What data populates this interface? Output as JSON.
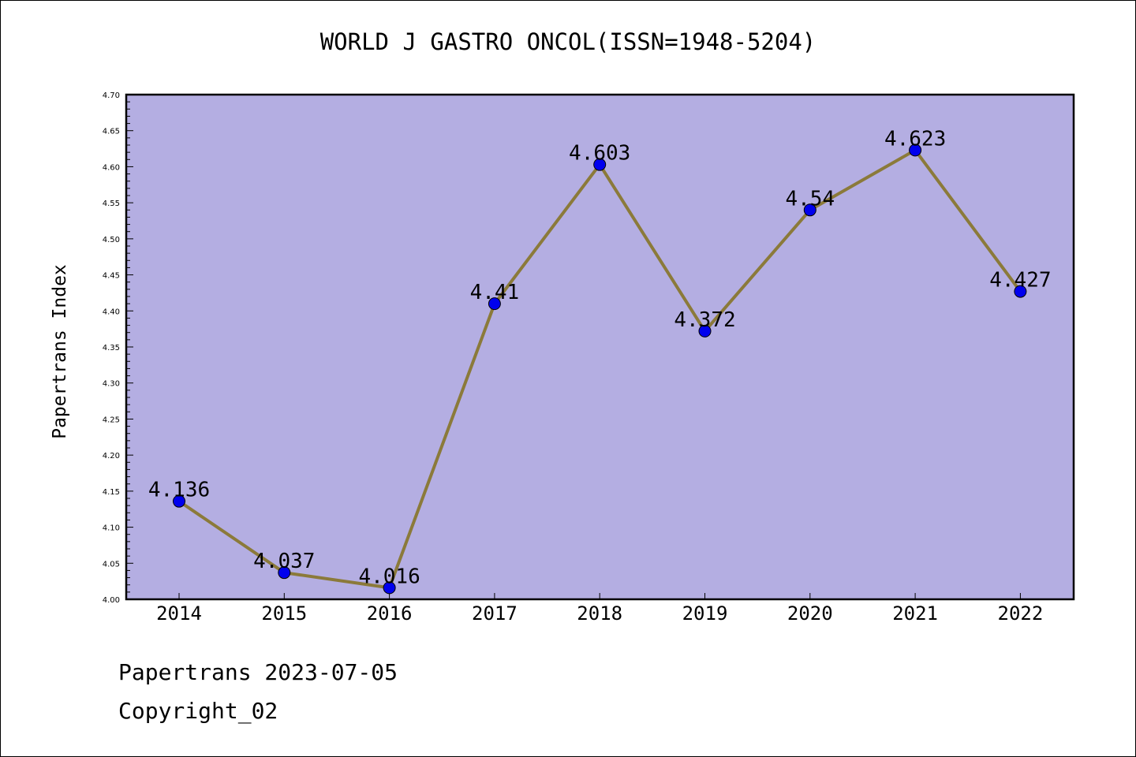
{
  "chart_data": {
    "type": "line",
    "title": "WORLD J GASTRO ONCOL(ISSN=1948-5204)",
    "ylabel": "Papertrans Index",
    "xlabel": "",
    "categories": [
      "2014",
      "2015",
      "2016",
      "2017",
      "2018",
      "2019",
      "2020",
      "2021",
      "2022"
    ],
    "values": [
      4.136,
      4.037,
      4.016,
      4.41,
      4.603,
      4.372,
      4.54,
      4.623,
      4.427
    ],
    "data_labels": [
      "4.136",
      "4.037",
      "4.016",
      "4.41",
      "4.603",
      "4.372",
      "4.54",
      "4.623",
      "4.427"
    ],
    "ylim": [
      4.0,
      4.7
    ],
    "yticks": [
      "4.00",
      "4.05",
      "4.10",
      "4.15",
      "4.20",
      "4.25",
      "4.30",
      "4.35",
      "4.40",
      "4.45",
      "4.50",
      "4.55",
      "4.60",
      "4.65",
      "4.70"
    ],
    "grid": false,
    "colors": {
      "plot_bg": "#b4aee2",
      "line": "#8b7a3a",
      "marker": "#0000ee"
    }
  },
  "footer": {
    "line1": "Papertrans 2023-07-05",
    "line2": "Copyright_02"
  }
}
